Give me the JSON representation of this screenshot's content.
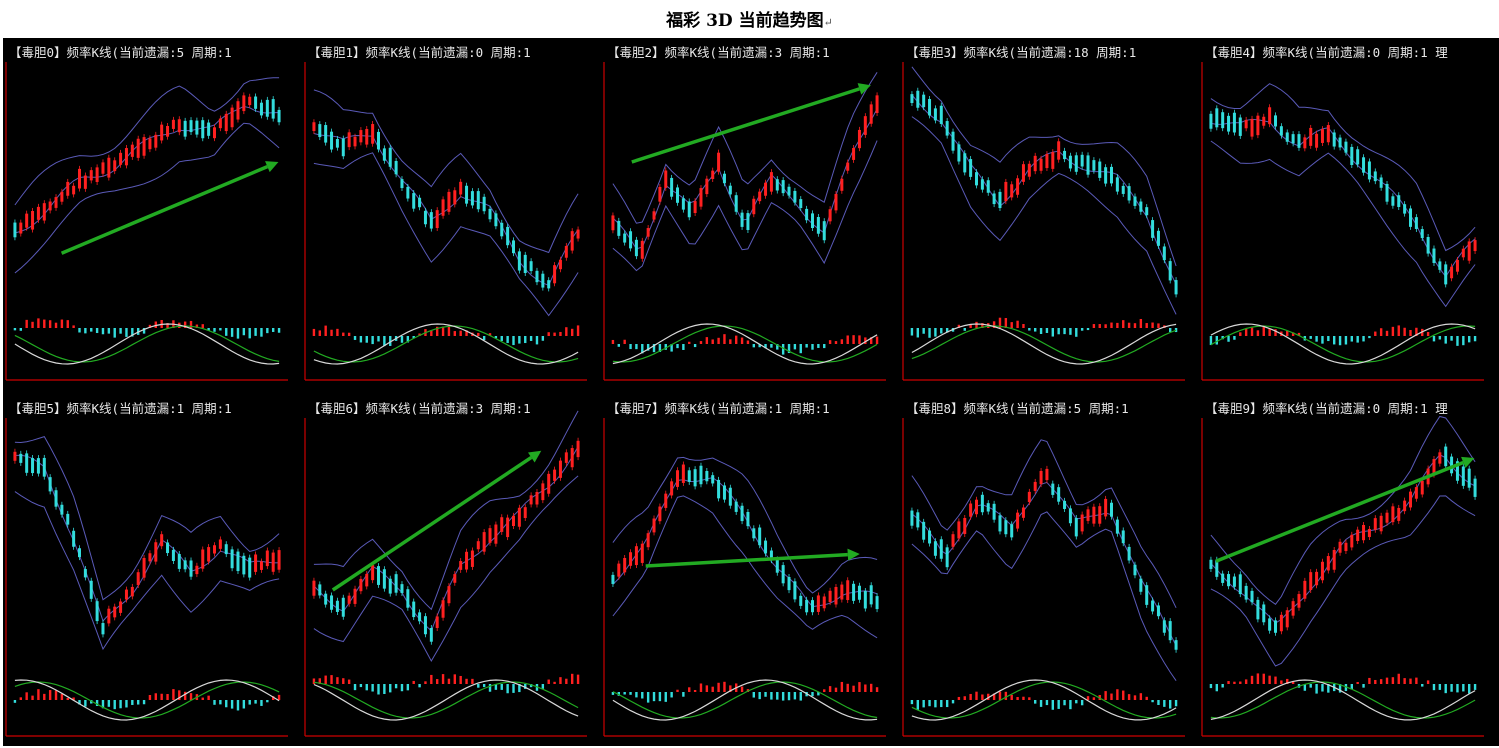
{
  "page": {
    "title": "福彩 3D 当前趋势图",
    "title_mark": "↵"
  },
  "colors": {
    "background": "#000000",
    "axis": "#cc0000",
    "candle_up": "#ff2020",
    "candle_down": "#33dddd",
    "band": "#5a5ab8",
    "ma_white": "#d8d8d8",
    "ma_green": "#22aa22",
    "arrow": "#22aa22"
  },
  "panels": [
    {
      "label": "【毒胆0】频率K线(当前遗漏:5 周期:1",
      "trend": [
        0.3,
        0.42,
        0.55,
        0.62,
        0.72,
        0.82,
        0.78,
        0.93,
        0.86
      ],
      "arrow": [
        [
          0.2,
          0.22
        ],
        [
          0.98,
          0.6
        ]
      ]
    },
    {
      "label": "【毒胆1】频率K线(当前遗漏:0 周期:1",
      "trend": [
        0.8,
        0.72,
        0.78,
        0.55,
        0.35,
        0.5,
        0.4,
        0.18,
        0.05,
        0.3
      ],
      "arrow": null
    },
    {
      "label": "【毒胆2】频率K线(当前遗漏:3 周期:1",
      "trend": [
        0.35,
        0.2,
        0.55,
        0.4,
        0.62,
        0.35,
        0.55,
        0.45,
        0.3,
        0.65,
        0.92
      ],
      "arrow": [
        [
          0.1,
          0.6
        ],
        [
          0.96,
          0.92
        ]
      ]
    },
    {
      "label": "【毒胆3】频率K线(当前遗漏:18 周期:1",
      "trend": [
        0.95,
        0.85,
        0.6,
        0.45,
        0.6,
        0.68,
        0.62,
        0.55,
        0.4,
        0.05
      ],
      "arrow": null
    },
    {
      "label": "【毒胆4】频率K线(当前遗漏:0 周期:1 理",
      "trend": [
        0.85,
        0.8,
        0.84,
        0.72,
        0.78,
        0.65,
        0.5,
        0.35,
        0.1,
        0.25
      ],
      "arrow": null
    },
    {
      "label": "【毒胆5】频率K线(当前遗漏:1 周期:1",
      "trend": [
        0.92,
        0.88,
        0.55,
        0.12,
        0.3,
        0.52,
        0.38,
        0.5,
        0.4,
        0.45
      ],
      "arrow": null
    },
    {
      "label": "【毒胆6】频率K线(当前遗漏:3 周期:1",
      "trend": [
        0.3,
        0.22,
        0.38,
        0.3,
        0.1,
        0.4,
        0.55,
        0.65,
        0.8,
        0.98
      ],
      "arrow": [
        [
          0.1,
          0.3
        ],
        [
          0.85,
          0.88
        ]
      ]
    },
    {
      "label": "【毒胆7】频率K线(当前遗漏:1 周期:1",
      "trend": [
        0.35,
        0.5,
        0.85,
        0.82,
        0.65,
        0.4,
        0.2,
        0.3,
        0.25
      ],
      "arrow": [
        [
          0.15,
          0.4
        ],
        [
          0.92,
          0.45
        ]
      ]
    },
    {
      "label": "【毒胆8】频率K线(当前遗漏:5 周期:1",
      "trend": [
        0.65,
        0.45,
        0.72,
        0.58,
        0.85,
        0.6,
        0.7,
        0.3,
        0.05
      ],
      "arrow": null
    },
    {
      "label": "【毒胆9】频率K线(当前遗漏:0 周期:1 理",
      "trend": [
        0.4,
        0.3,
        0.1,
        0.32,
        0.5,
        0.6,
        0.7,
        0.95,
        0.8
      ],
      "arrow": [
        [
          0.05,
          0.42
        ],
        [
          0.98,
          0.85
        ]
      ]
    }
  ]
}
